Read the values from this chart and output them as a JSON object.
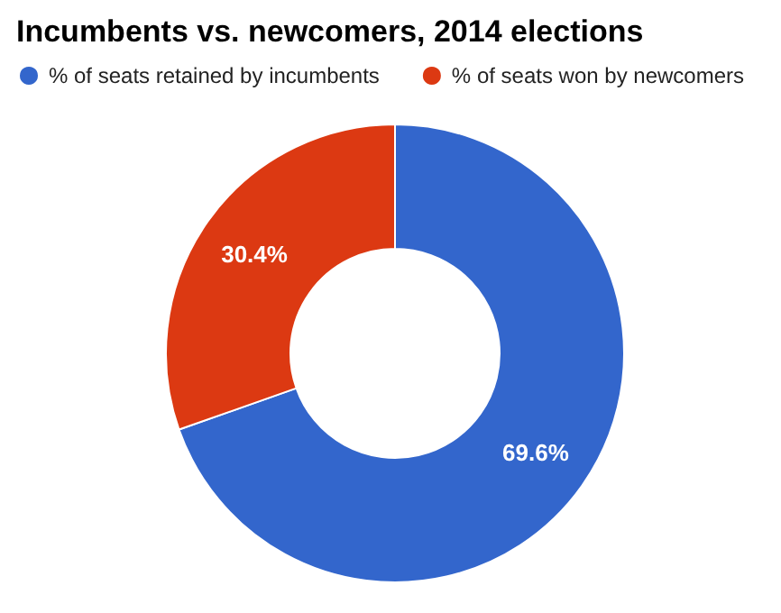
{
  "chart_data": {
    "type": "donut",
    "title": "Incumbents vs. newcomers, 2014 elections",
    "categories": [
      "% of seats retained by incumbents",
      "% of seats won by newcomers"
    ],
    "values": [
      69.6,
      30.4
    ],
    "colors": [
      "#3366cc",
      "#dc3912"
    ],
    "value_labels": [
      "69.6%",
      "30.4%"
    ],
    "legend": "top left"
  }
}
